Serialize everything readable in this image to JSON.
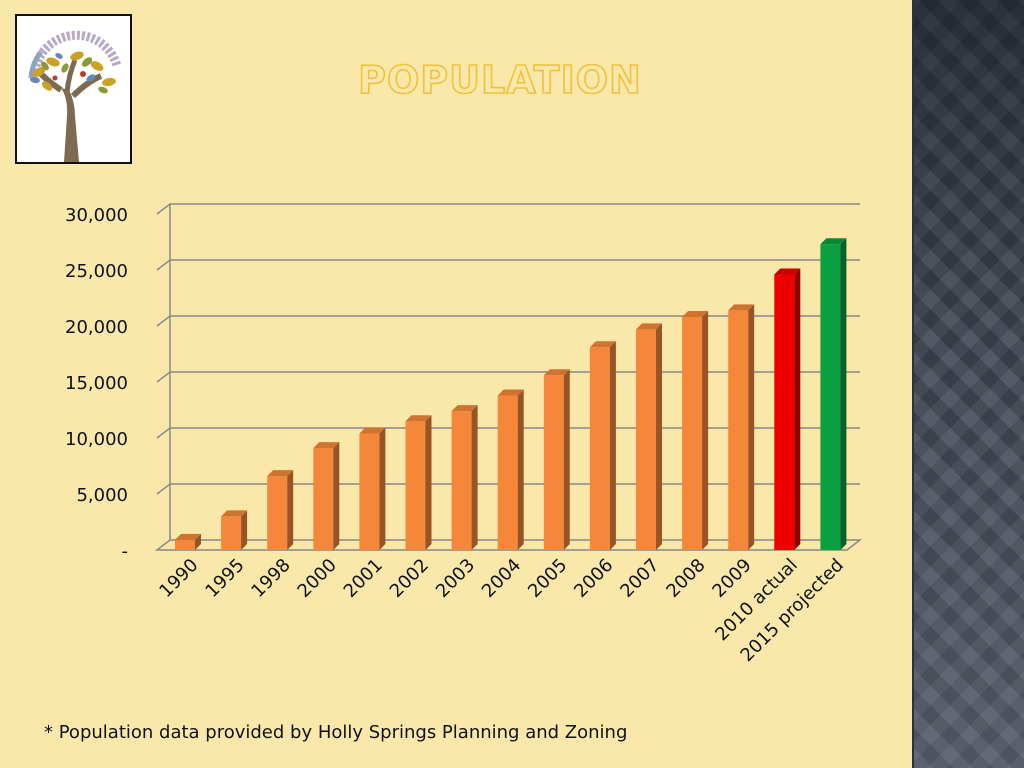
{
  "slide": {
    "title": "POPULATION",
    "footnote": "* Population data provided by Holly Springs Planning and Zoning",
    "logo": {
      "icon": "tree-logo-icon",
      "arc_text_left": "DESIGN ARCHITECTURE",
      "arc_text_right": "ARTS & ENTERTAINMENT DISTILLERY"
    }
  },
  "chart_data": {
    "type": "bar",
    "title": "",
    "xlabel": "",
    "ylabel": "",
    "ylim": [
      0,
      30000
    ],
    "yticks": [
      0,
      5000,
      10000,
      15000,
      20000,
      25000,
      30000
    ],
    "ytick_labels": [
      "-",
      "5,000",
      "10,000",
      "15,000",
      "20,000",
      "25,000",
      "30,000"
    ],
    "grid": true,
    "categories": [
      "1990",
      "1995",
      "1998",
      "2000",
      "2001",
      "2002",
      "2003",
      "2004",
      "2005",
      "2006",
      "2007",
      "2008",
      "2009",
      "2010 actual",
      "2015 projected"
    ],
    "values": [
      900,
      3000,
      6600,
      9100,
      10400,
      11500,
      12400,
      13800,
      15600,
      18100,
      19700,
      20800,
      21400,
      24600,
      27300
    ],
    "bar_colors": [
      "#f5873a",
      "#f5873a",
      "#f5873a",
      "#f5873a",
      "#f5873a",
      "#f5873a",
      "#f5873a",
      "#f5873a",
      "#f5873a",
      "#f5873a",
      "#f5873a",
      "#f5873a",
      "#f5873a",
      "#ee0000",
      "#08a040"
    ]
  }
}
